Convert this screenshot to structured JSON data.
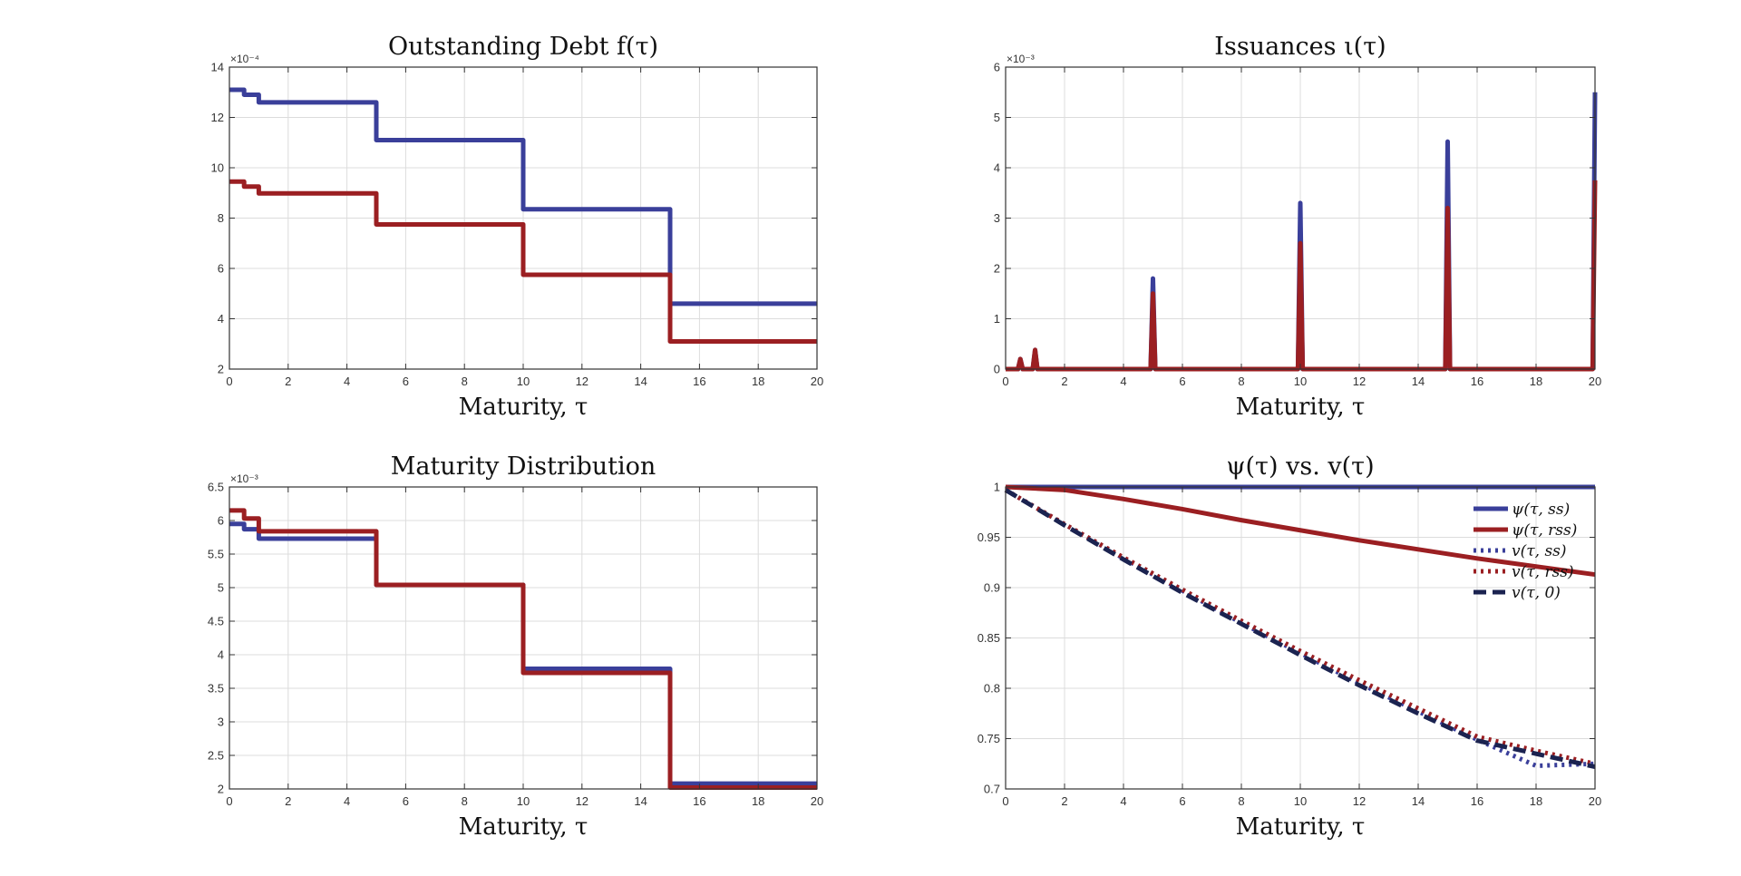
{
  "colors": {
    "blue": "#3a3f9a",
    "red": "#9b1f22",
    "navy": "#1b2350"
  },
  "chart_data": [
    {
      "type": "line",
      "title": "Outstanding Debt f(τ)",
      "xlabel": "Maturity, τ",
      "ylabel": "",
      "exponent": "×10⁻⁴",
      "xlim": [
        0,
        20
      ],
      "ylim": [
        2,
        14
      ],
      "xticks": [
        0,
        2,
        4,
        6,
        8,
        10,
        12,
        14,
        16,
        18,
        20
      ],
      "yticks": [
        2,
        4,
        6,
        8,
        10,
        12,
        14
      ],
      "grid": true,
      "series": [
        {
          "color": "blue",
          "style": "solid",
          "x": [
            0,
            0.5,
            0.5,
            1.0,
            1.0,
            5.0,
            5.0,
            10.0,
            10.0,
            15.0,
            15.0,
            20.0
          ],
          "values": [
            13.1,
            13.1,
            12.9,
            12.9,
            12.6,
            12.6,
            11.1,
            11.1,
            8.35,
            8.35,
            4.6,
            4.6
          ]
        },
        {
          "color": "red",
          "style": "solid",
          "x": [
            0,
            0.5,
            0.5,
            1.0,
            1.0,
            5.0,
            5.0,
            10.0,
            10.0,
            15.0,
            15.0,
            20.0
          ],
          "values": [
            9.45,
            9.45,
            9.25,
            9.25,
            8.98,
            8.98,
            7.75,
            7.75,
            5.75,
            5.75,
            3.1,
            3.1
          ]
        }
      ]
    },
    {
      "type": "line",
      "title": "Issuances ι(τ)",
      "xlabel": "Maturity, τ",
      "ylabel": "",
      "exponent": "×10⁻³",
      "xlim": [
        0,
        20
      ],
      "ylim": [
        0,
        6
      ],
      "xticks": [
        0,
        2,
        4,
        6,
        8,
        10,
        12,
        14,
        16,
        18,
        20
      ],
      "yticks": [
        0,
        1,
        2,
        3,
        4,
        5,
        6
      ],
      "grid": true,
      "series": [
        {
          "color": "blue",
          "style": "solid",
          "x": [
            0,
            0.42,
            0.5,
            0.58,
            0.92,
            1.0,
            1.08,
            4.92,
            5.0,
            5.08,
            9.92,
            10.0,
            10.08,
            14.92,
            15.0,
            15.08,
            19.92,
            20.0
          ],
          "values": [
            0,
            0,
            0.2,
            0,
            0,
            0.38,
            0,
            0,
            1.8,
            0,
            0,
            3.3,
            0,
            0,
            4.52,
            0,
            0,
            5.5
          ]
        },
        {
          "color": "red",
          "style": "solid",
          "x": [
            0,
            0.42,
            0.5,
            0.58,
            0.92,
            1.0,
            1.08,
            4.92,
            5.0,
            5.08,
            9.92,
            10.0,
            10.08,
            14.92,
            15.0,
            15.08,
            19.92,
            20.0
          ],
          "values": [
            0,
            0,
            0.2,
            0,
            0,
            0.38,
            0,
            0,
            1.5,
            0,
            0,
            2.5,
            0,
            0,
            3.2,
            0,
            0,
            3.75
          ]
        }
      ]
    },
    {
      "type": "line",
      "title": "Maturity Distribution",
      "xlabel": "Maturity, τ",
      "ylabel": "",
      "exponent": "×10⁻³",
      "xlim": [
        0,
        20
      ],
      "ylim": [
        2,
        6.5
      ],
      "xticks": [
        0,
        2,
        4,
        6,
        8,
        10,
        12,
        14,
        16,
        18,
        20
      ],
      "yticks": [
        2,
        2.5,
        3,
        3.5,
        4,
        4.5,
        5,
        5.5,
        6,
        6.5
      ],
      "grid": true,
      "series": [
        {
          "color": "blue",
          "style": "solid",
          "x": [
            0,
            0.5,
            0.5,
            1.0,
            1.0,
            5.0,
            5.0,
            10.0,
            10.0,
            15.0,
            15.0,
            20.0
          ],
          "values": [
            5.95,
            5.95,
            5.87,
            5.87,
            5.73,
            5.73,
            5.04,
            5.04,
            3.79,
            3.79,
            2.08,
            2.08
          ]
        },
        {
          "color": "red",
          "style": "solid",
          "x": [
            0,
            0.5,
            0.5,
            1.0,
            1.0,
            5.0,
            5.0,
            10.0,
            10.0,
            15.0,
            15.0,
            20.0
          ],
          "values": [
            6.15,
            6.15,
            6.03,
            6.03,
            5.84,
            5.84,
            5.04,
            5.04,
            3.73,
            3.73,
            2.02,
            2.02
          ]
        }
      ]
    },
    {
      "type": "line",
      "title": "ψ(τ) vs. v(τ)",
      "xlabel": "Maturity, τ",
      "ylabel": "",
      "xlim": [
        0,
        20
      ],
      "ylim": [
        0.7,
        1
      ],
      "xticks": [
        0,
        2,
        4,
        6,
        8,
        10,
        12,
        14,
        16,
        18,
        20
      ],
      "yticks": [
        0.7,
        0.75,
        0.8,
        0.85,
        0.9,
        0.95,
        1
      ],
      "grid": true,
      "legend": "top-right",
      "series": [
        {
          "name": "ψ(τ, ss)",
          "color": "blue",
          "style": "solid",
          "x": [
            0,
            20
          ],
          "values": [
            1,
            1
          ]
        },
        {
          "name": "ψ(τ, rss)",
          "color": "red",
          "style": "solid",
          "x": [
            0,
            2,
            4,
            6,
            8,
            10,
            12,
            14,
            16,
            18,
            20
          ],
          "values": [
            1.0,
            0.997,
            0.988,
            0.978,
            0.967,
            0.957,
            0.947,
            0.938,
            0.929,
            0.921,
            0.913
          ]
        },
        {
          "name": "v(τ, ss)",
          "color": "blue",
          "style": "dotted",
          "x": [
            0,
            2,
            4,
            6,
            8,
            10,
            12,
            14,
            16,
            18,
            20
          ],
          "values": [
            0.997,
            0.963,
            0.929,
            0.897,
            0.865,
            0.835,
            0.805,
            0.777,
            0.749,
            0.723,
            0.725
          ]
        },
        {
          "name": "v(τ, rss)",
          "color": "red",
          "style": "dotted",
          "x": [
            0,
            2,
            4,
            6,
            8,
            10,
            12,
            14,
            16,
            18,
            20
          ],
          "values": [
            0.997,
            0.963,
            0.93,
            0.898,
            0.867,
            0.837,
            0.808,
            0.78,
            0.752,
            0.738,
            0.725
          ]
        },
        {
          "name": "v(τ, 0)",
          "color": "navy",
          "style": "dashed",
          "x": [
            0,
            2,
            4,
            6,
            8,
            10,
            12,
            14,
            16,
            18,
            20
          ],
          "values": [
            0.997,
            0.962,
            0.928,
            0.895,
            0.864,
            0.833,
            0.803,
            0.775,
            0.748,
            0.735,
            0.722
          ]
        }
      ]
    }
  ]
}
